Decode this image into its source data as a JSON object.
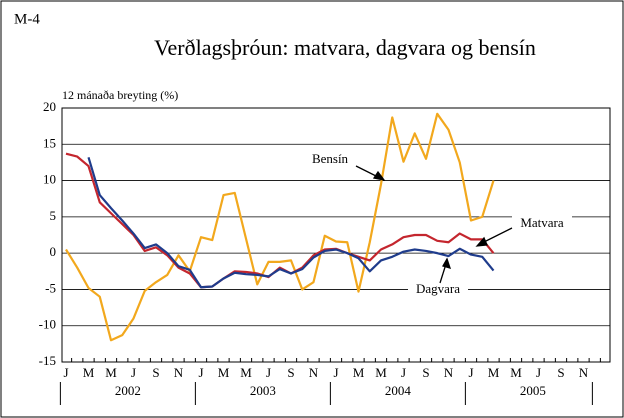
{
  "chart_data": {
    "type": "line",
    "figure_label": "M-4",
    "title": "Verðlagsþróun: matvara, dagvara og bensín",
    "y_axis_label": "12 mánaða breyting (%)",
    "categories": [
      "J",
      null,
      "M",
      null,
      "M",
      null,
      "J",
      null,
      "S",
      null,
      "N",
      null,
      "J",
      null,
      "M",
      null,
      "M",
      null,
      "J",
      null,
      "S",
      null,
      "N",
      null,
      "J",
      null,
      "M",
      null,
      "M",
      null,
      "J",
      null,
      "S",
      null,
      "N",
      null,
      "J",
      null,
      "M",
      null,
      "M",
      null,
      "J",
      null,
      "S",
      null,
      "N",
      null
    ],
    "years": [
      "2002",
      "2003",
      "2004",
      "2005"
    ],
    "series": [
      {
        "name": "Bensín",
        "color": "#f2a81d",
        "values": [
          0.5,
          -2,
          -4.8,
          -6,
          -12,
          -11.3,
          -9,
          -5.2,
          -4,
          -3,
          -0.3,
          -2.5,
          2.2,
          1.8,
          8,
          8.3,
          2,
          -4.3,
          -1.2,
          -1.2,
          -1,
          -5,
          -4,
          2.4,
          1.6,
          1.5,
          -5.3,
          1.5,
          9.5,
          18.7,
          12.6,
          16.5,
          13,
          19.2,
          17,
          12.5,
          4.5,
          5,
          10,
          null,
          null,
          null,
          null,
          null,
          null,
          null,
          null,
          null
        ]
      },
      {
        "name": "Matvara",
        "color": "#c4262e",
        "values": [
          13.7,
          13.3,
          12,
          7,
          5.5,
          4,
          2.5,
          0.3,
          0.8,
          -0.3,
          -2,
          -2.8,
          -4.7,
          -4.6,
          -3.5,
          -2.5,
          -2.6,
          -2.8,
          -3.3,
          -2,
          -2.8,
          -2,
          -0.3,
          0.5,
          0.6,
          0,
          -0.5,
          -1,
          0.5,
          1.2,
          2.2,
          2.5,
          2.5,
          1.7,
          1.5,
          2.7,
          1.9,
          1.9,
          0,
          null,
          null,
          null,
          null,
          null,
          null,
          null,
          null,
          null
        ]
      },
      {
        "name": "Dagvara",
        "color": "#1f3c8c",
        "values": [
          null,
          null,
          13.2,
          8,
          6.2,
          4.5,
          2.7,
          0.7,
          1.2,
          0,
          -1.8,
          -2.3,
          -4.7,
          -4.6,
          -3.5,
          -2.7,
          -2.9,
          -3,
          -3.2,
          -2.2,
          -2.8,
          -2.2,
          -0.6,
          0.3,
          0.5,
          0,
          -0.7,
          -2.5,
          -1,
          -0.5,
          0.2,
          0.5,
          0.3,
          0,
          -0.4,
          0.6,
          -0.2,
          -0.5,
          -2.4,
          null,
          null,
          null,
          null,
          null,
          null,
          null,
          null,
          null
        ]
      }
    ],
    "ylim": [
      -15,
      20
    ],
    "yticks": [
      -15,
      -10,
      -5,
      0,
      5,
      10,
      15,
      20
    ],
    "grid": true
  }
}
